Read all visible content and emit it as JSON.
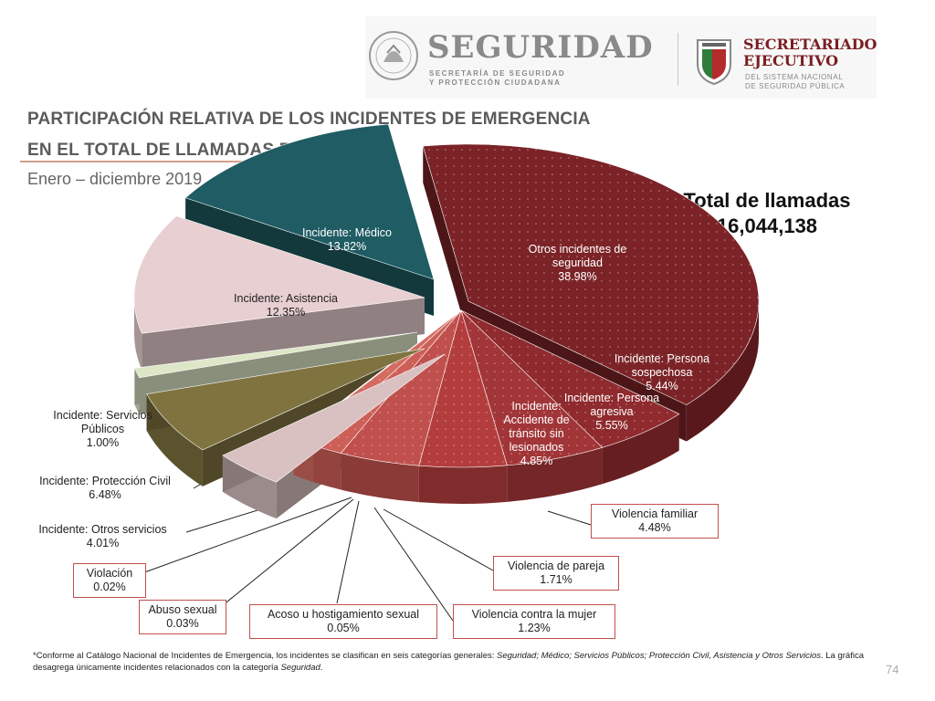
{
  "header": {
    "brand": "SEGURIDAD",
    "brand_sub_1": "SECRETARÍA DE SEGURIDAD",
    "brand_sub_2": "Y PROTECCIÓN CIUDADANA",
    "se_title_1": "SECRETARIADO",
    "se_title_2": "EJECUTIVO",
    "se_sub_1": "DEL SISTEMA NACIONAL",
    "se_sub_2": "DE SEGURIDAD PÚBLICA"
  },
  "title_line_1": "PARTICIPACIÓN RELATIVA DE LOS INCIDENTES DE EMERGENCIA",
  "title_line_2": "EN EL TOTAL DE LLAMADAS REALES (%)*",
  "subtitle": "Enero – diciembre 2019",
  "total_label": "Total de llamadas",
  "total_value": "16,044,138",
  "footnote": {
    "part1": "*Conforme al Catálogo Nacional de Incidentes de Emergencia, los incidentes se clasifican en seis categorías generales: ",
    "cats1": "Seguridad; Médico; Servicios Públicos; Protección Civil, Asistencia y Otros Servicios",
    "part2": ". La gráfica desagrega únicamente incidentes relacionados con la categoría ",
    "cats2": "Seguridad",
    "part3": "."
  },
  "page_number": "74",
  "chart_data": {
    "type": "pie",
    "title": "PARTICIPACIÓN RELATIVA DE LOS INCIDENTES DE EMERGENCIA EN EL TOTAL DE LLAMADAS REALES (%)*",
    "subtitle": "Enero – diciembre 2019",
    "unit": "%",
    "slices": [
      {
        "label": "Otros incidentes de seguridad",
        "value": 38.98,
        "color": "#7b2327"
      },
      {
        "label": "Incidente: Persona sospechosa",
        "value": 5.44,
        "color": "#8f2a2e"
      },
      {
        "label": "Incidente: Persona agresiva",
        "value": 5.55,
        "color": "#a13538"
      },
      {
        "label": "Incidente: Accidente de tránsito sin lesionados",
        "value": 4.85,
        "color": "#b33d3d"
      },
      {
        "label": "Violencia familiar",
        "value": 4.48,
        "color": "#c0504d"
      },
      {
        "label": "Violencia de pareja",
        "value": 1.71,
        "color": "#cc5f57"
      },
      {
        "label": "Violencia contra la mujer",
        "value": 1.23,
        "color": "#d46b60"
      },
      {
        "label": "Acoso u hostigamiento sexual",
        "value": 0.05,
        "color": "#d9736a"
      },
      {
        "label": "Abuso sexual",
        "value": 0.03,
        "color": "#e0807a"
      },
      {
        "label": "Violación",
        "value": 0.02,
        "color": "#e88d88"
      },
      {
        "label": "Incidente: Otros servicios",
        "value": 4.01,
        "color": "#d9c1c1"
      },
      {
        "label": "Incidente: Protección Civil",
        "value": 6.48,
        "color": "#7f7340"
      },
      {
        "label": "Incidente: Servicios Públicos",
        "value": 1.0,
        "color": "#dde6c7"
      },
      {
        "label": "Incidente: Asistencia",
        "value": 12.35,
        "color": "#e8cfd1"
      },
      {
        "label": "Incidente: Médico",
        "value": 13.82,
        "color": "#1f5c63"
      }
    ]
  },
  "labels": {
    "otros_seguridad": [
      "Otros incidentes de",
      "seguridad",
      "38.98%"
    ],
    "medico": [
      "Incidente: Médico",
      "13.82%"
    ],
    "asistencia": [
      "Incidente: Asistencia",
      "12.35%"
    ],
    "sospechosa": [
      "Incidente: Persona",
      "sospechosa",
      "5.44%"
    ],
    "agresiva": [
      "Incidente: Persona",
      "agresiva",
      "5.55%"
    ],
    "transito": [
      "Incidente:",
      "Accidente de",
      "tránsito sin",
      "lesionados",
      "4.85%"
    ],
    "servicios_publicos": [
      "Incidente: Servicios",
      "Públicos",
      "1.00%"
    ],
    "proteccion_civil": [
      "Incidente: Protección Civil",
      "6.48%"
    ],
    "otros_servicios": [
      "Incidente: Otros servicios",
      "4.01%"
    ],
    "violacion": [
      "Violación",
      "0.02%"
    ],
    "abuso": [
      "Abuso sexual",
      "0.03%"
    ],
    "acoso": [
      "Acoso u hostigamiento sexual",
      "0.05%"
    ],
    "violencia_mujer": [
      "Violencia contra la mujer",
      "1.23%"
    ],
    "violencia_pareja": [
      "Violencia de pareja",
      "1.71%"
    ],
    "violencia_familiar": [
      "Violencia familiar",
      "4.48%"
    ]
  }
}
